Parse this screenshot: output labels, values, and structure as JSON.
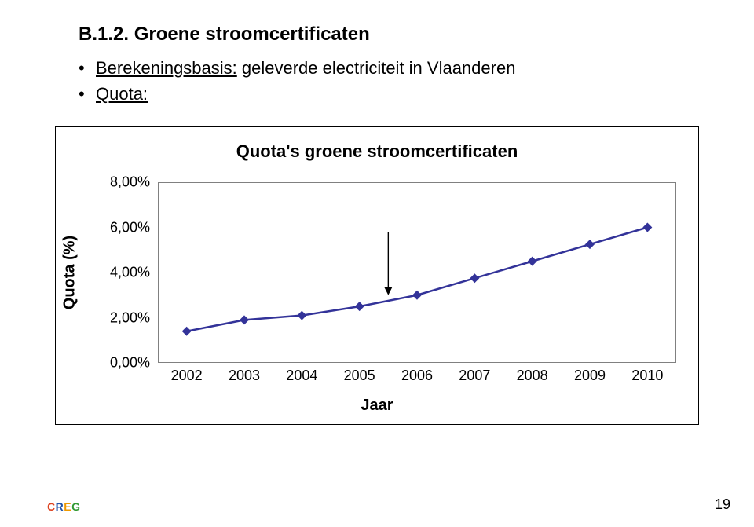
{
  "heading": "B.1.2. Groene stroomcertificaten",
  "bullets": {
    "b1_prefix": "Berekeningsbasis:",
    "b1_rest": " geleverde electriciteit in Vlaanderen",
    "b2": "Quota:"
  },
  "chart": {
    "type": "line",
    "title": "Quota's groene stroomcertificaten",
    "title_fontsize": 22,
    "categories": [
      "2002",
      "2003",
      "2004",
      "2005",
      "2006",
      "2007",
      "2008",
      "2009",
      "2010"
    ],
    "values": [
      1.4,
      1.9,
      2.1,
      2.5,
      3.0,
      3.75,
      4.5,
      5.25,
      6.0
    ],
    "marker": "diamond",
    "marker_size": 12,
    "marker_color": "#333399",
    "line_color": "#333399",
    "line_width": 2.5,
    "ylabel": "Quota (%)",
    "xlabel": "Jaar",
    "label_fontsize": 20,
    "tick_fontsize": 18,
    "yticks": [
      "0,00%",
      "2,00%",
      "4,00%",
      "6,00%",
      "8,00%"
    ],
    "ytick_values": [
      0,
      2,
      4,
      6,
      8
    ],
    "ylim": [
      0,
      8
    ],
    "background_color": "#ffffff",
    "border_color": "#808080",
    "annotation_arrow": {
      "from_x": 3.5,
      "from_y": 5.8,
      "to_x": 3.5,
      "to_y": 3.0,
      "color": "#000000",
      "width": 1.4
    }
  },
  "footer": {
    "page_number": "19",
    "logo_letters": {
      "c": "C",
      "r": "R",
      "e": "E",
      "g": "G"
    }
  },
  "colors": {
    "text": "#000000",
    "background": "#ffffff"
  }
}
